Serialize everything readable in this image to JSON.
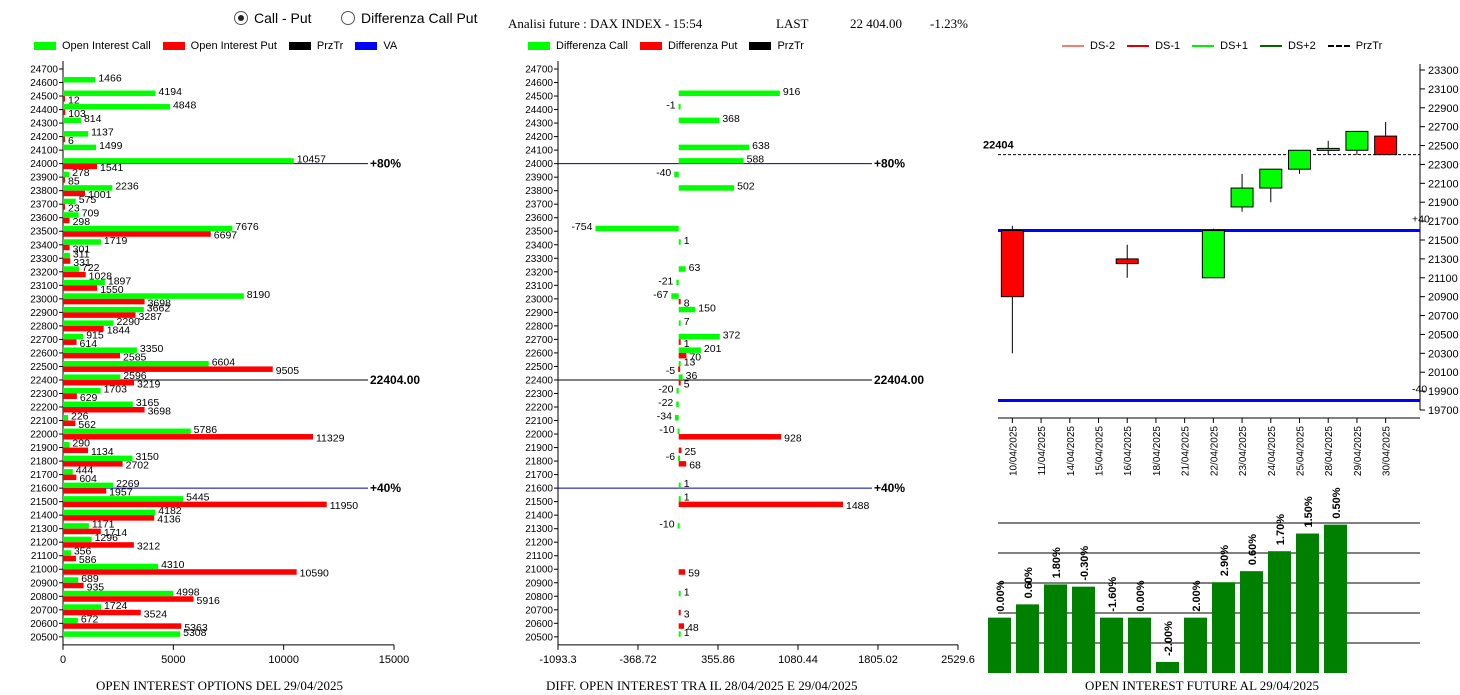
{
  "header": {
    "radio_call_put": "Call - Put",
    "radio_diff": "Differenza Call Put",
    "title": "Analisi future : DAX INDEX - 15:54",
    "last_label": "LAST",
    "last_value": "22 404.00",
    "change": "-1.23%"
  },
  "colors": {
    "green": "#00ff00",
    "red": "#ff0000",
    "black": "#000000",
    "blue": "#0000ff",
    "dark_green": "#008000",
    "navy": "#000080"
  },
  "legend1": {
    "call": "Open Interest Call",
    "put": "Open Interest Put",
    "prztr": "PrzTr",
    "va": "VA"
  },
  "legend2": {
    "call": "Differenza Call",
    "put": "Differenza Put",
    "prztr": "PrzTr"
  },
  "legend3": {
    "ds_minus2": "DS-2",
    "ds_minus1": "DS-1",
    "ds_plus1": "DS+1",
    "ds_plus2": "DS+2",
    "prztr": "PrzTr"
  },
  "footers": {
    "chart1": "OPEN INTEREST OPTIONS DEL 29/04/2025",
    "chart2": "DIFF. OPEN INTEREST TRA IL 28/04/2025 E 29/04/2025",
    "chart3": "OPEN INTEREST FUTURE AL 29/04/2025"
  },
  "chart_data": [
    {
      "type": "bar",
      "orientation": "horizontal",
      "strikes": [
        24700,
        24600,
        24500,
        24400,
        24300,
        24200,
        24100,
        24000,
        23900,
        23800,
        23700,
        23600,
        23500,
        23400,
        23300,
        23200,
        23100,
        23000,
        22900,
        22800,
        22700,
        22600,
        22500,
        22400,
        22300,
        22200,
        22100,
        22000,
        21900,
        21800,
        21700,
        21600,
        21500,
        21400,
        21300,
        21200,
        21100,
        21000,
        20900,
        20800,
        20700,
        20600,
        20500
      ],
      "series": [
        {
          "name": "Open Interest Call",
          "color": "#00ff00",
          "values": [
            null,
            1466,
            4194,
            4848,
            814,
            1137,
            1499,
            10457,
            278,
            2236,
            575,
            709,
            7676,
            1719,
            311,
            722,
            1897,
            8190,
            3662,
            2290,
            915,
            3350,
            6604,
            2596,
            1703,
            3165,
            226,
            5786,
            290,
            3150,
            444,
            2269,
            5445,
            4182,
            1171,
            1296,
            356,
            4310,
            689,
            4998,
            1724,
            672,
            5308
          ]
        },
        {
          "name": "Open Interest Put",
          "color": "#ff0000",
          "values": [
            null,
            null,
            12,
            103,
            null,
            6,
            null,
            1541,
            85,
            1001,
            23,
            298,
            6697,
            301,
            331,
            1028,
            1550,
            3698,
            3287,
            1844,
            614,
            2585,
            9505,
            3219,
            629,
            3698,
            562,
            11329,
            1134,
            2702,
            604,
            1957,
            11950,
            4136,
            1714,
            3212,
            586,
            10590,
            935,
            5916,
            3524,
            5363,
            null
          ]
        }
      ],
      "xlim": [
        0,
        15000
      ],
      "xticks": [
        "0",
        "5000",
        "10000",
        "15000"
      ],
      "reference_lines": [
        {
          "strike": 24000,
          "label": "+80%"
        },
        {
          "strike": 22400,
          "label": "22404.00"
        },
        {
          "strike": 21600,
          "label": "+40%"
        }
      ]
    },
    {
      "type": "bar",
      "orientation": "horizontal",
      "strikes": [
        24700,
        24600,
        24500,
        24400,
        24300,
        24200,
        24100,
        24000,
        23900,
        23800,
        23700,
        23600,
        23500,
        23400,
        23300,
        23200,
        23100,
        23000,
        22900,
        22800,
        22700,
        22600,
        22500,
        22400,
        22300,
        22200,
        22100,
        22000,
        21900,
        21800,
        21700,
        21600,
        21500,
        21400,
        21300,
        21200,
        21100,
        21000,
        20900,
        20800,
        20700,
        20600,
        20500
      ],
      "series": [
        {
          "name": "Differenza Call",
          "color": "#00ff00",
          "values": [
            null,
            null,
            916,
            -1,
            368,
            null,
            638,
            588,
            -40,
            502,
            null,
            null,
            -754,
            1,
            null,
            63,
            -21,
            -67,
            150,
            7,
            372,
            201,
            13,
            36,
            -20,
            -22,
            -34,
            -10,
            null,
            -6,
            null,
            1,
            1,
            null,
            -10,
            null,
            null,
            null,
            null,
            1,
            null,
            null,
            1
          ]
        },
        {
          "name": "Differenza Put",
          "color": "#ff0000",
          "values": [
            null,
            null,
            null,
            null,
            null,
            null,
            null,
            null,
            null,
            null,
            null,
            null,
            null,
            null,
            null,
            null,
            null,
            8,
            null,
            null,
            1,
            70,
            -5,
            5,
            null,
            null,
            null,
            928,
            25,
            68,
            null,
            null,
            1488,
            null,
            null,
            null,
            null,
            59,
            null,
            null,
            3,
            48,
            null
          ]
        }
      ],
      "xlim": [
        -1093.3,
        2529.6
      ],
      "xticks": [
        "-1093.3",
        "-368.72",
        "355.86",
        "1080.44",
        "1805.02",
        "2529.6"
      ],
      "reference_lines": [
        {
          "strike": 24000,
          "label": "+80%"
        },
        {
          "strike": 22400,
          "label": "22404.00"
        },
        {
          "strike": 21600,
          "label": "+40%"
        }
      ]
    },
    {
      "type": "candlestick",
      "dates": [
        "10/04/2025",
        "11/04/2025",
        "14/04/2025",
        "15/04/2025",
        "16/04/2025",
        "18/04/2025",
        "21/04/2025",
        "22/04/2025",
        "23/04/2025",
        "24/04/2025",
        "25/04/2025",
        "28/04/2025",
        "29/04/2025",
        "30/04/2025"
      ],
      "candles": [
        {
          "date": "10/04/2025",
          "open": 21600,
          "close": 20900,
          "high": 21650,
          "low": 20300
        },
        {
          "date": "16/04/2025",
          "open": 21300,
          "close": 21250,
          "high": 21450,
          "low": 21100
        },
        {
          "date": "22/04/2025",
          "open": 21100,
          "close": 21600,
          "high": 21620,
          "low": 21100
        },
        {
          "date": "23/04/2025",
          "open": 21850,
          "close": 22050,
          "high": 22200,
          "low": 21800
        },
        {
          "date": "24/04/2025",
          "open": 22050,
          "close": 22250,
          "high": 22250,
          "low": 21900
        },
        {
          "date": "25/04/2025",
          "open": 22250,
          "close": 22450,
          "high": 22450,
          "low": 22200
        },
        {
          "date": "28/04/2025",
          "open": 22450,
          "close": 22470,
          "high": 22550,
          "low": 22400
        },
        {
          "date": "29/04/2025",
          "open": 22450,
          "close": 22650,
          "high": 22650,
          "low": 22400
        },
        {
          "date": "30/04/2025",
          "open": 22600,
          "close": 22404,
          "high": 22750,
          "low": 22404
        }
      ],
      "yticks": [
        23300,
        23100,
        22900,
        22700,
        22500,
        22300,
        22100,
        21900,
        21700,
        21500,
        21300,
        21100,
        20900,
        20700,
        20500,
        20300,
        20100,
        19900,
        19700
      ],
      "ylim": [
        19700,
        23300
      ],
      "last_label": "22404",
      "last_value": 22404,
      "levels": [
        {
          "value": 21600,
          "label": "+40"
        },
        {
          "value": 19800,
          "label": "-40"
        }
      ]
    },
    {
      "type": "bar",
      "values": [
        0.0,
        0.6,
        1.8,
        -0.3,
        -1.6,
        0.0,
        -2.0,
        2.0,
        2.9,
        0.6,
        1.7,
        1.5,
        0.5
      ],
      "labels": [
        "0.00%",
        "0.60%",
        "1.80%",
        "-0.30%",
        "-1.60%",
        "0.00%",
        "-2.00%",
        "2.00%",
        "2.90%",
        "0.60%",
        "1.70%",
        "1.50%",
        "0.50%"
      ],
      "open_interest_levels": [
        5,
        6.2,
        8,
        7.8,
        5,
        5,
        1,
        5,
        8.2,
        9.2,
        11,
        12.6,
        13.4
      ],
      "color": "#008000"
    }
  ]
}
